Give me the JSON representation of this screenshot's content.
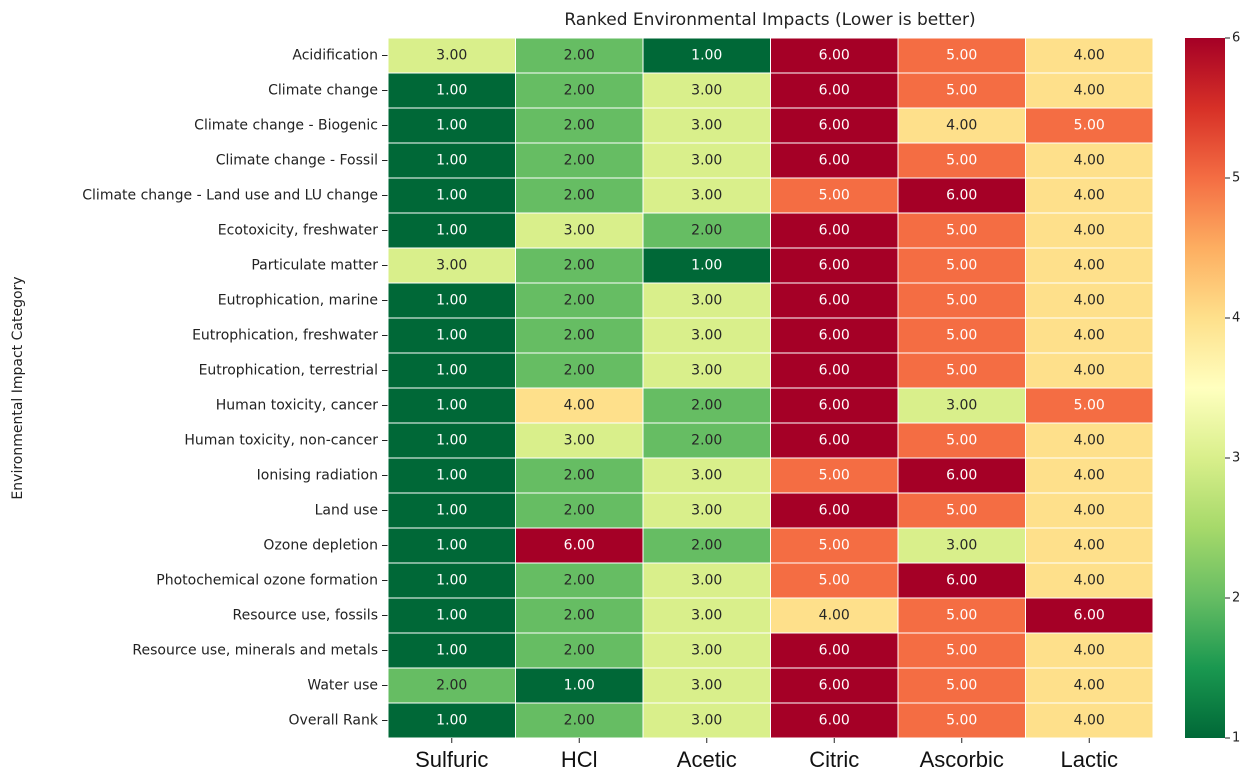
{
  "chart_data": {
    "type": "heatmap",
    "title": "Ranked Environmental Impacts (Lower is better)",
    "ylabel": "Environmental Impact Category",
    "columns": [
      "Sulfuric",
      "HCl",
      "Acetic",
      "Citric",
      "Ascorbic",
      "Lactic"
    ],
    "rows": [
      "Acidification",
      "Climate change",
      "Climate change - Biogenic",
      "Climate change - Fossil",
      "Climate change - Land use and LU change",
      "Ecotoxicity, freshwater",
      "Particulate matter",
      "Eutrophication, marine",
      "Eutrophication, freshwater",
      "Eutrophication, terrestrial",
      "Human toxicity, cancer",
      "Human toxicity, non-cancer",
      "Ionising radiation",
      "Land use",
      "Ozone depletion",
      "Photochemical ozone formation",
      "Resource use, fossils",
      "Resource use, minerals and metals",
      "Water use",
      "Overall Rank"
    ],
    "values": [
      [
        3,
        2,
        1,
        6,
        5,
        4
      ],
      [
        1,
        2,
        3,
        6,
        5,
        4
      ],
      [
        1,
        2,
        3,
        6,
        4,
        5
      ],
      [
        1,
        2,
        3,
        6,
        5,
        4
      ],
      [
        1,
        2,
        3,
        5,
        6,
        4
      ],
      [
        1,
        3,
        2,
        6,
        5,
        4
      ],
      [
        3,
        2,
        1,
        6,
        5,
        4
      ],
      [
        1,
        2,
        3,
        6,
        5,
        4
      ],
      [
        1,
        2,
        3,
        6,
        5,
        4
      ],
      [
        1,
        2,
        3,
        6,
        5,
        4
      ],
      [
        1,
        4,
        2,
        6,
        3,
        5
      ],
      [
        1,
        3,
        2,
        6,
        5,
        4
      ],
      [
        1,
        2,
        3,
        5,
        6,
        4
      ],
      [
        1,
        2,
        3,
        6,
        5,
        4
      ],
      [
        1,
        6,
        2,
        5,
        3,
        4
      ],
      [
        1,
        2,
        3,
        5,
        6,
        4
      ],
      [
        1,
        2,
        3,
        4,
        5,
        6
      ],
      [
        1,
        2,
        3,
        6,
        5,
        4
      ],
      [
        2,
        1,
        3,
        6,
        5,
        4
      ],
      [
        1,
        2,
        3,
        6,
        5,
        4
      ]
    ],
    "value_labels": [
      [
        "3.00",
        "2.00",
        "1.00",
        "6.00",
        "5.00",
        "4.00"
      ],
      [
        "1.00",
        "2.00",
        "3.00",
        "6.00",
        "5.00",
        "4.00"
      ],
      [
        "1.00",
        "2.00",
        "3.00",
        "6.00",
        "4.00",
        "5.00"
      ],
      [
        "1.00",
        "2.00",
        "3.00",
        "6.00",
        "5.00",
        "4.00"
      ],
      [
        "1.00",
        "2.00",
        "3.00",
        "5.00",
        "6.00",
        "4.00"
      ],
      [
        "1.00",
        "3.00",
        "2.00",
        "6.00",
        "5.00",
        "4.00"
      ],
      [
        "3.00",
        "2.00",
        "1.00",
        "6.00",
        "5.00",
        "4.00"
      ],
      [
        "1.00",
        "2.00",
        "3.00",
        "6.00",
        "5.00",
        "4.00"
      ],
      [
        "1.00",
        "2.00",
        "3.00",
        "6.00",
        "5.00",
        "4.00"
      ],
      [
        "1.00",
        "2.00",
        "3.00",
        "6.00",
        "5.00",
        "4.00"
      ],
      [
        "1.00",
        "4.00",
        "2.00",
        "6.00",
        "3.00",
        "5.00"
      ],
      [
        "1.00",
        "3.00",
        "2.00",
        "6.00",
        "5.00",
        "4.00"
      ],
      [
        "1.00",
        "2.00",
        "3.00",
        "5.00",
        "6.00",
        "4.00"
      ],
      [
        "1.00",
        "2.00",
        "3.00",
        "6.00",
        "5.00",
        "4.00"
      ],
      [
        "1.00",
        "6.00",
        "2.00",
        "5.00",
        "3.00",
        "4.00"
      ],
      [
        "1.00",
        "2.00",
        "3.00",
        "5.00",
        "6.00",
        "4.00"
      ],
      [
        "1.00",
        "2.00",
        "3.00",
        "4.00",
        "5.00",
        "6.00"
      ],
      [
        "1.00",
        "2.00",
        "3.00",
        "6.00",
        "5.00",
        "4.00"
      ],
      [
        "2.00",
        "1.00",
        "3.00",
        "6.00",
        "5.00",
        "4.00"
      ],
      [
        "1.00",
        "2.00",
        "3.00",
        "6.00",
        "5.00",
        "4.00"
      ]
    ],
    "colormap": "RdYlGn_r",
    "clim": [
      1,
      6
    ],
    "colorbar_ticks": [
      1,
      2,
      3,
      4,
      5,
      6
    ]
  }
}
